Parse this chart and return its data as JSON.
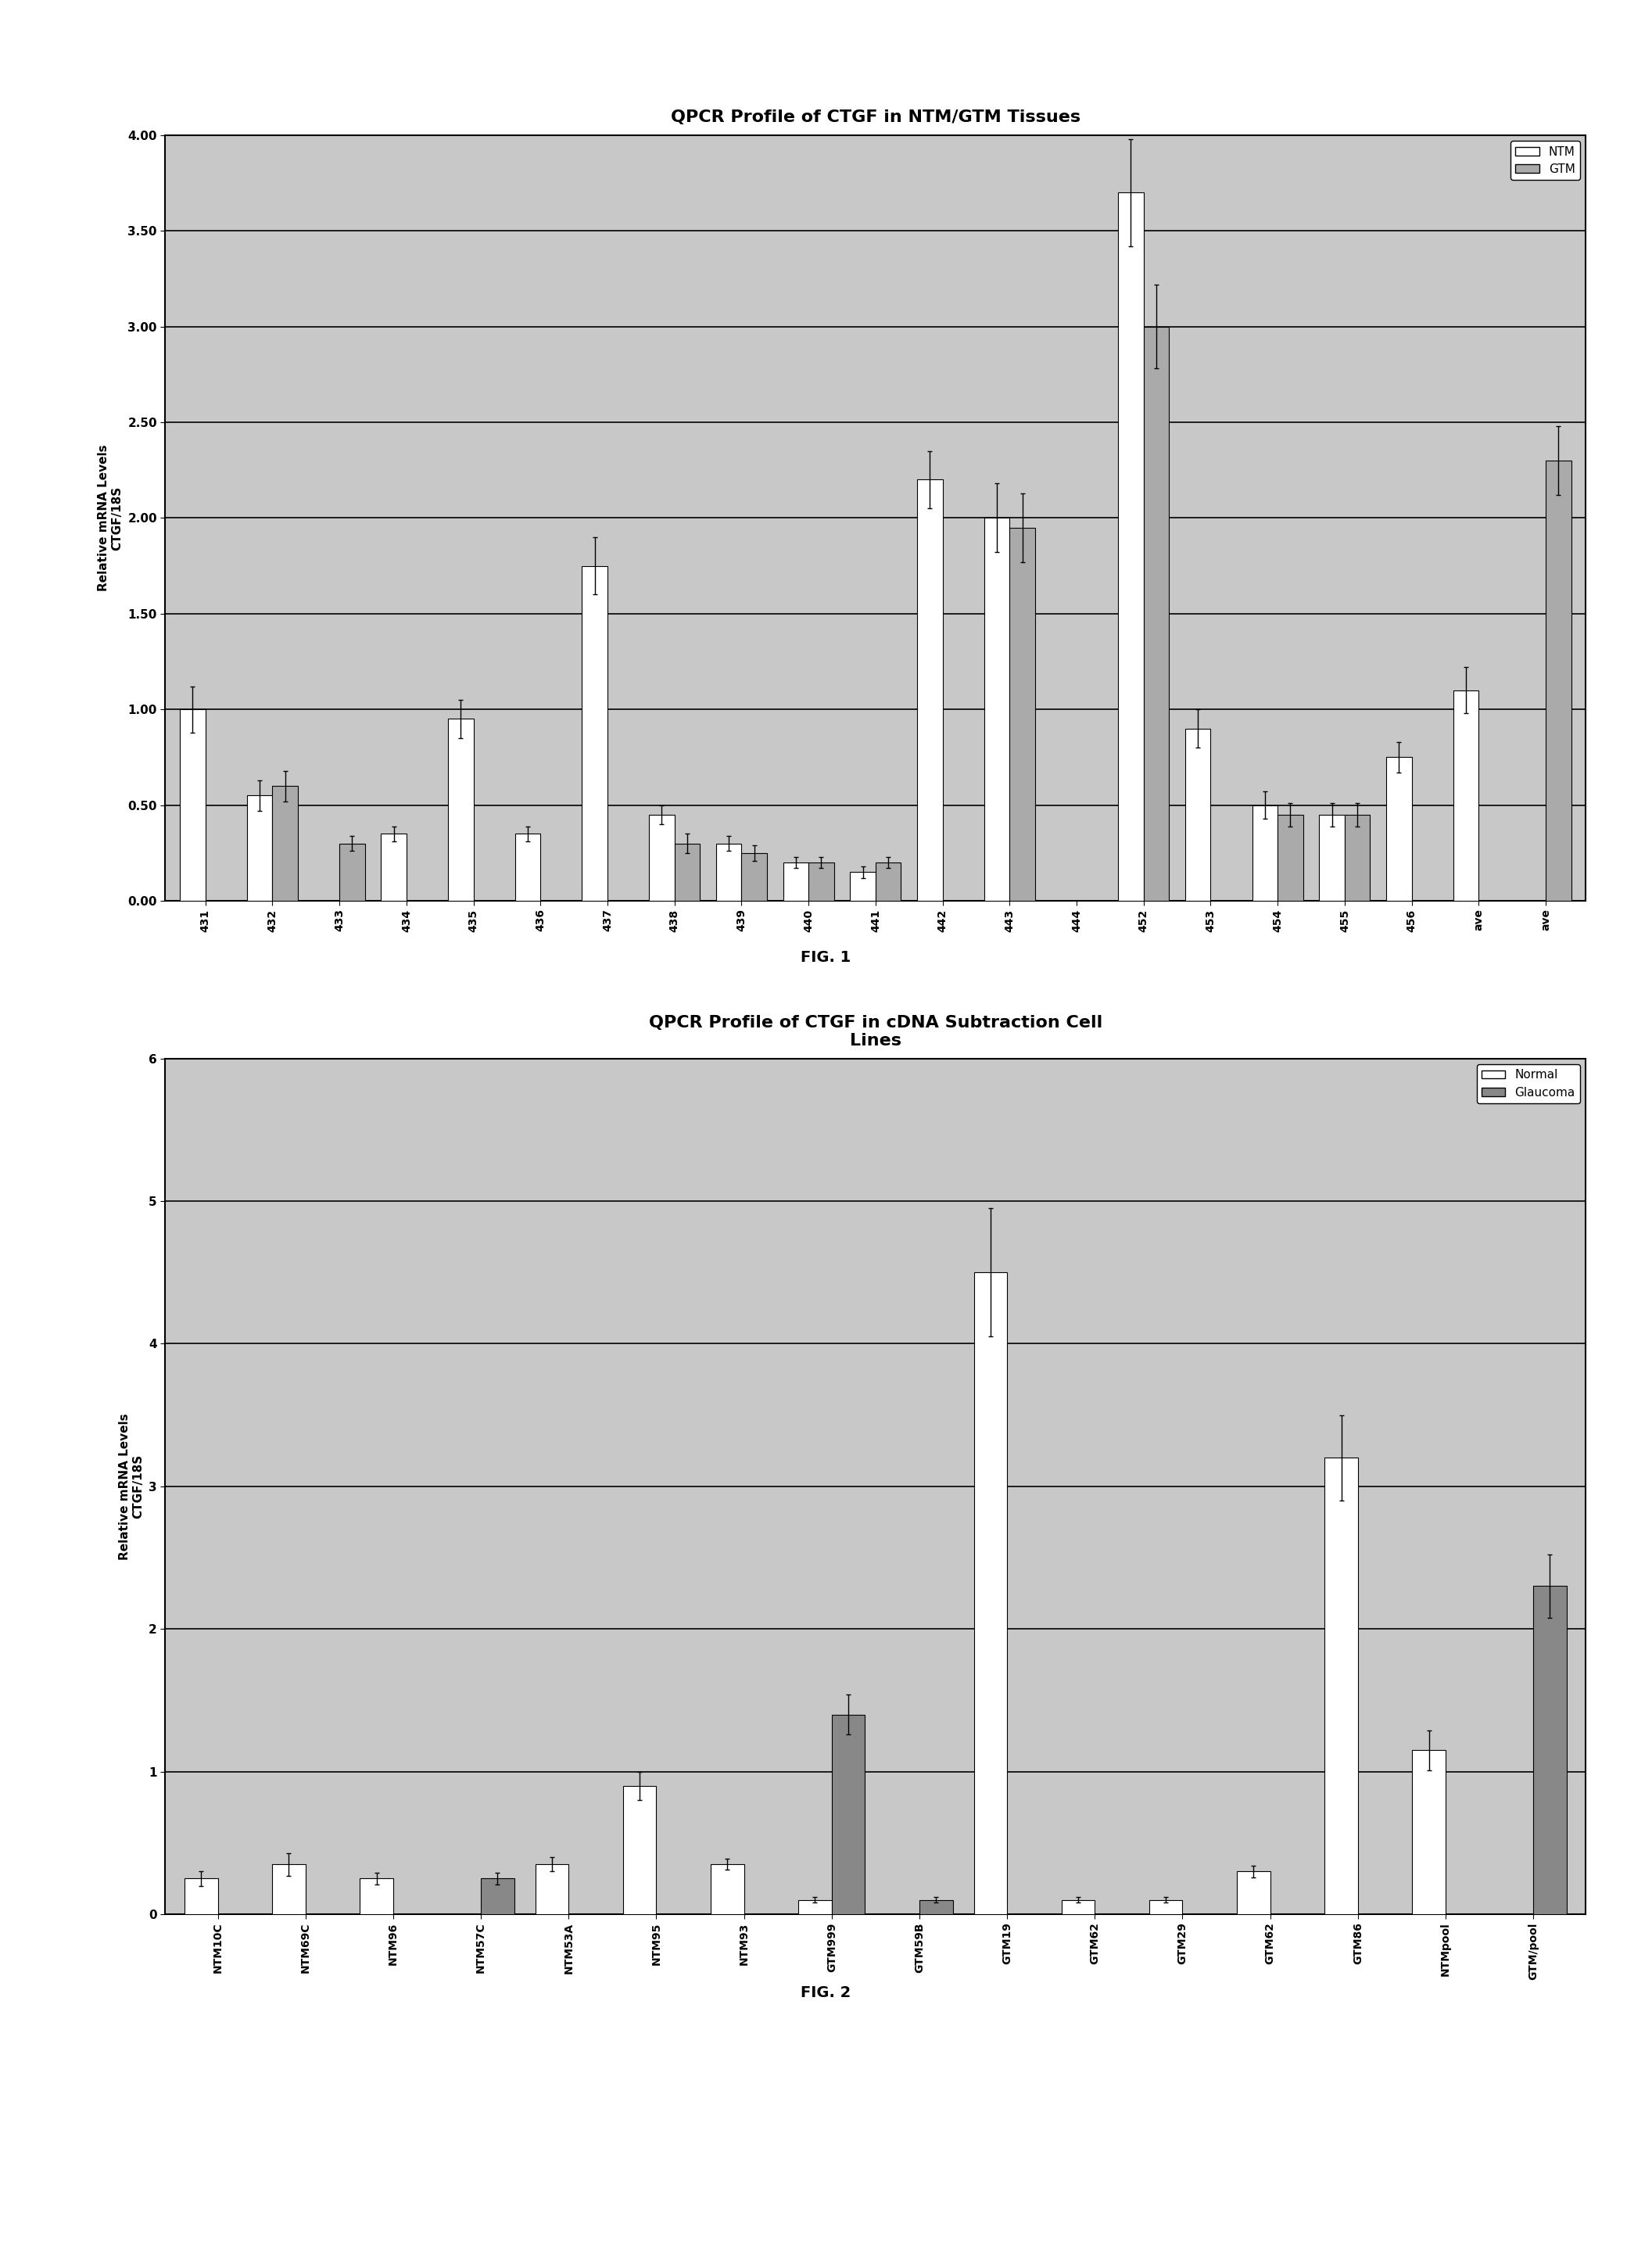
{
  "fig1": {
    "title": "QPCR Profile of CTGF in NTM/GTM Tissues",
    "ylabel": "Relative mRNA Levels\nCTGF/18S",
    "ylim": [
      0,
      4.0
    ],
    "yticks": [
      0.0,
      0.5,
      1.0,
      1.5,
      2.0,
      2.5,
      3.0,
      3.5,
      4.0
    ],
    "categories": [
      "431",
      "432",
      "433",
      "434",
      "435",
      "436",
      "437",
      "438",
      "439",
      "440",
      "441",
      "442",
      "443",
      "444",
      "452",
      "453",
      "454",
      "455",
      "456",
      "ave",
      "ave"
    ],
    "ntm_values": [
      1.0,
      0.55,
      0.0,
      0.35,
      0.95,
      0.35,
      1.75,
      0.45,
      0.3,
      0.2,
      0.15,
      2.2,
      2.0,
      0.0,
      3.7,
      0.9,
      0.5,
      0.45,
      0.75,
      1.1,
      0.0
    ],
    "gtm_values": [
      0.0,
      0.6,
      0.3,
      0.0,
      0.0,
      0.0,
      0.0,
      0.3,
      0.25,
      0.2,
      0.2,
      0.0,
      1.95,
      0.0,
      3.0,
      0.0,
      0.45,
      0.45,
      0.0,
      0.0,
      2.3
    ],
    "ntm_errors": [
      0.12,
      0.08,
      0.0,
      0.04,
      0.1,
      0.04,
      0.15,
      0.05,
      0.04,
      0.03,
      0.03,
      0.15,
      0.18,
      0.0,
      0.28,
      0.1,
      0.07,
      0.06,
      0.08,
      0.12,
      0.0
    ],
    "gtm_errors": [
      0.0,
      0.08,
      0.04,
      0.0,
      0.0,
      0.0,
      0.0,
      0.05,
      0.04,
      0.03,
      0.03,
      0.0,
      0.18,
      0.0,
      0.22,
      0.0,
      0.06,
      0.06,
      0.0,
      0.0,
      0.18
    ],
    "ntm_color": "#ffffff",
    "gtm_color": "#aaaaaa",
    "legend_labels": [
      "NTM",
      "GTM"
    ],
    "background_color": "#c8c8c8"
  },
  "fig2": {
    "title": "QPCR Profile of CTGF in cDNA Subtraction Cell\nLines",
    "ylabel": "Relative mRNA Levels\nCTGF/18S",
    "ylim": [
      0,
      6
    ],
    "yticks": [
      0,
      1,
      2,
      3,
      4,
      5,
      6
    ],
    "categories": [
      "NTM10C",
      "NTM69C",
      "NTM96",
      "NTM57C",
      "NTM53A",
      "NTM95",
      "NTM93",
      "GTM999",
      "GTM59B",
      "GTM19",
      "GTM62",
      "GTM29",
      "GTM62",
      "GTM86",
      "NTMpool",
      "GTM/pool"
    ],
    "normal_values": [
      0.25,
      0.35,
      0.25,
      0.0,
      0.35,
      0.9,
      0.35,
      0.1,
      0.0,
      4.5,
      0.1,
      0.1,
      0.3,
      3.2,
      1.15,
      0.0
    ],
    "glaucoma_values": [
      0.0,
      0.0,
      0.0,
      0.25,
      0.0,
      0.0,
      0.0,
      1.4,
      0.1,
      0.0,
      0.0,
      0.0,
      0.0,
      0.0,
      0.0,
      2.3
    ],
    "normal_errors": [
      0.05,
      0.08,
      0.04,
      0.0,
      0.05,
      0.1,
      0.04,
      0.02,
      0.0,
      0.45,
      0.02,
      0.02,
      0.04,
      0.3,
      0.14,
      0.0
    ],
    "glaucoma_errors": [
      0.0,
      0.0,
      0.0,
      0.04,
      0.0,
      0.0,
      0.0,
      0.14,
      0.02,
      0.0,
      0.0,
      0.0,
      0.0,
      0.0,
      0.0,
      0.22
    ],
    "normal_color": "#ffffff",
    "glaucoma_color": "#888888",
    "legend_labels": [
      "Normal",
      "Glaucoma"
    ],
    "background_color": "#c8c8c8"
  },
  "fig1_label": "FIG. 1",
  "fig2_label": "FIG. 2"
}
